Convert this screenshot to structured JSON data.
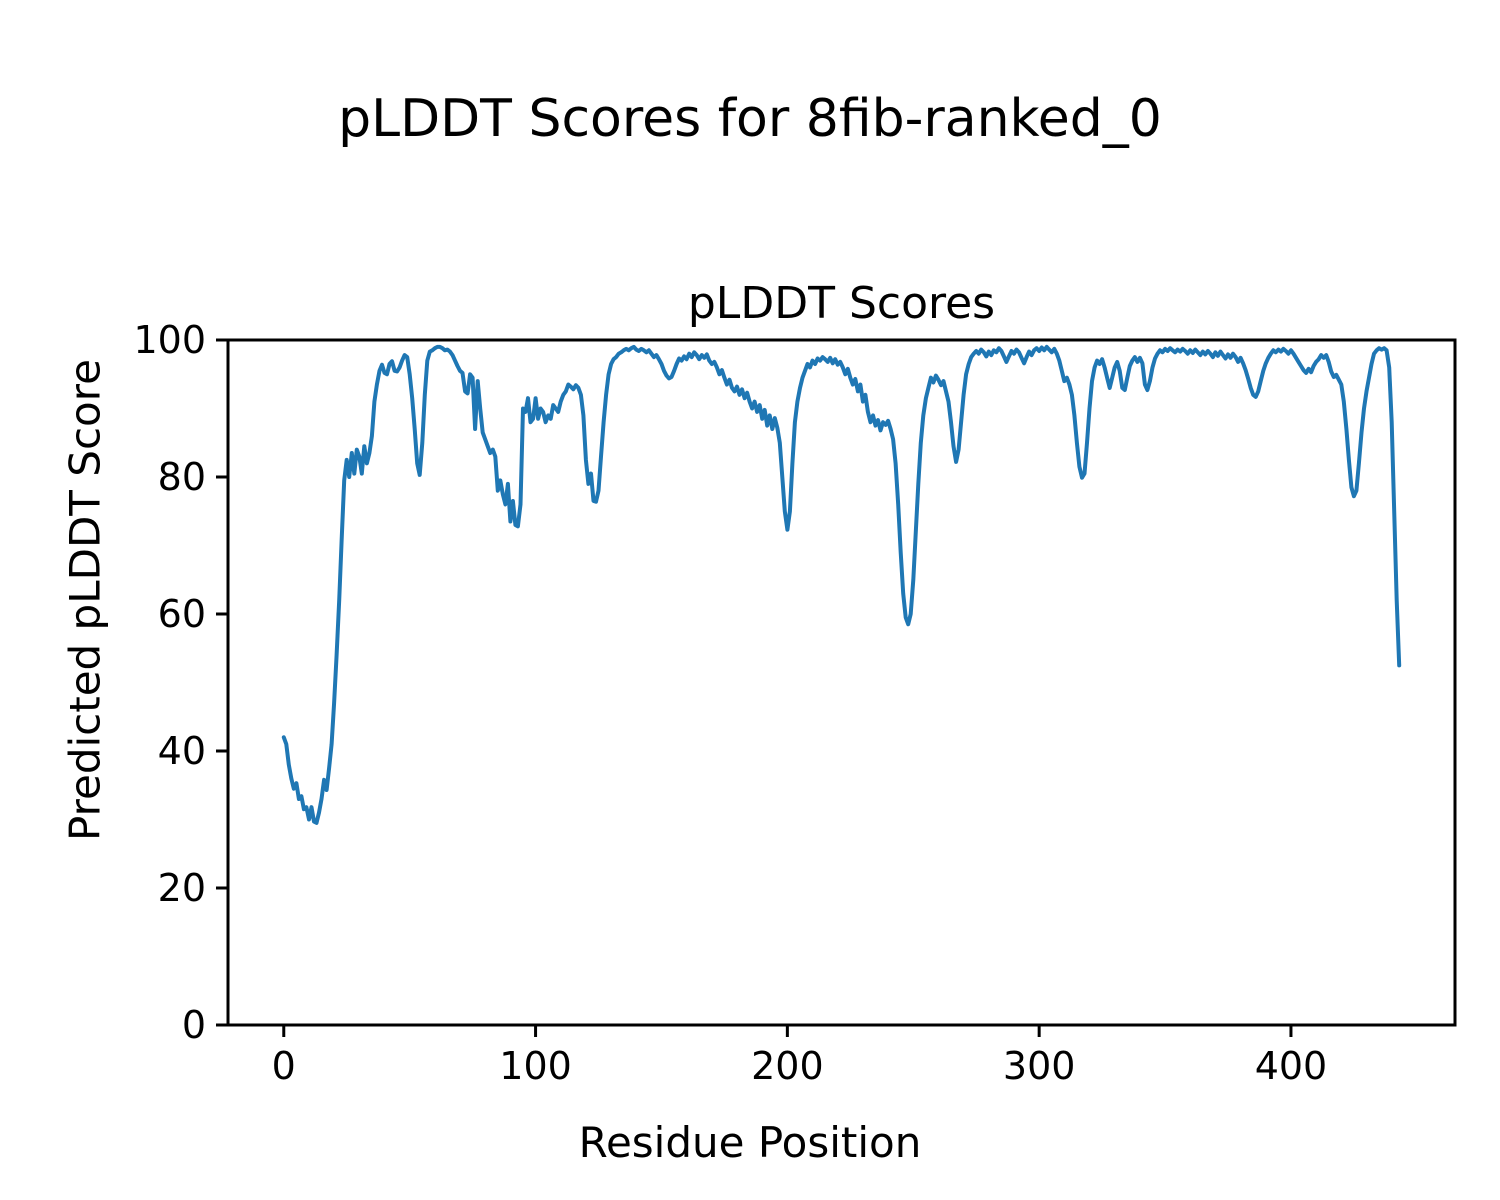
{
  "figure": {
    "title": "pLDDT Scores for 8fib-ranked_0"
  },
  "chart_data": {
    "type": "line",
    "title": "pLDDT Scores",
    "xlabel": "Residue Position",
    "ylabel": "Predicted pLDDT Score",
    "legend": "none",
    "grid": false,
    "line_color": "#1f77b4",
    "line_width": 4,
    "xlim": [
      -22.15,
      465.15
    ],
    "ylim": [
      0,
      100
    ],
    "x_ticks": [
      0,
      100,
      200,
      300,
      400
    ],
    "y_ticks": [
      0,
      20,
      40,
      60,
      80,
      100
    ],
    "x0": 0,
    "dx": 1,
    "y": [
      42,
      41,
      38,
      36,
      34.5,
      35.3,
      33,
      33.4,
      31.5,
      31.8,
      30,
      31.8,
      29.7,
      29.5,
      31,
      33,
      35.8,
      34.3,
      37.5,
      41,
      47,
      54,
      62,
      71,
      79.5,
      82.5,
      80,
      83.5,
      80.5,
      84,
      83,
      80.5,
      84.5,
      82,
      83.5,
      86,
      91,
      93.5,
      95.5,
      96.4,
      95.2,
      95,
      96.5,
      96.9,
      95.5,
      95.4,
      96,
      97,
      97.8,
      97.5,
      95,
      91.5,
      87,
      82,
      80.3,
      85,
      92,
      97,
      98.3,
      98.5,
      98.8,
      99,
      99,
      98.8,
      98.5,
      98.6,
      98.3,
      97.8,
      97,
      96.2,
      95.5,
      95.2,
      92.5,
      92.2,
      95,
      94.5,
      87,
      94,
      90,
      86.5,
      85.5,
      84.5,
      83.5,
      84,
      83,
      78,
      79.5,
      77.5,
      76,
      79,
      73.5,
      76.5,
      73,
      72.8,
      76,
      90,
      89.5,
      91.5,
      88,
      88.5,
      91.5,
      88.5,
      90,
      89.5,
      88,
      89,
      88.5,
      90.5,
      90,
      89.5,
      91,
      92,
      92.5,
      93.5,
      93.2,
      92.8,
      93.4,
      93,
      92,
      89,
      82.5,
      79,
      80.5,
      76.5,
      76.4,
      78,
      83,
      88,
      92,
      95,
      96.5,
      97.2,
      97.5,
      98,
      98.2,
      98.5,
      98.7,
      98.5,
      98.8,
      99,
      98.6,
      98.4,
      98.7,
      98.5,
      98.2,
      98.5,
      98,
      97.5,
      97.8,
      97.2,
      96.5,
      95.5,
      94.8,
      94.4,
      94.6,
      95.5,
      96.5,
      97.3,
      97,
      97.6,
      97.2,
      98,
      97.5,
      98.2,
      97.8,
      97.2,
      97.8,
      97.4,
      97.9,
      97,
      96.5,
      96.8,
      96,
      95,
      95.6,
      94.5,
      93.5,
      94.2,
      93,
      92.5,
      93.2,
      92,
      92.8,
      91.5,
      92.3,
      91,
      90,
      91,
      89.5,
      90.5,
      88.5,
      89.8,
      87.5,
      89,
      87,
      88.6,
      87.2,
      85,
      80,
      75,
      72.3,
      75,
      82,
      88,
      91,
      93,
      94.5,
      95.5,
      96.5,
      96,
      97,
      96.5,
      97.3,
      97,
      97.5,
      97.2,
      96.8,
      97.4,
      96.6,
      97.2,
      96.4,
      96.8,
      96,
      95,
      95.8,
      94.5,
      93.5,
      94.3,
      92.5,
      93.5,
      91,
      92,
      89.5,
      88,
      89,
      87.5,
      88.3,
      86.8,
      88,
      87.6,
      88.2,
      87,
      85.5,
      82,
      76,
      69,
      63,
      59.5,
      58.5,
      60,
      65,
      72,
      79,
      85,
      89,
      91.5,
      93,
      94.5,
      93.8,
      94.8,
      94.2,
      93.4,
      94,
      92.5,
      91,
      88,
      84.5,
      82.2,
      84,
      88,
      92,
      95,
      96.5,
      97.5,
      98,
      98.4,
      98,
      98.6,
      98.2,
      97.6,
      98.3,
      97.8,
      98.5,
      98.2,
      98.8,
      98.4,
      97.6,
      96.8,
      97.6,
      98.4,
      98,
      98.6,
      98.2,
      97.4,
      96.6,
      97.5,
      98.3,
      97.8,
      98.5,
      98.8,
      98.4,
      98.9,
      98.5,
      99,
      98.6,
      98.2,
      98.7,
      98,
      97,
      95.5,
      94,
      94.5,
      93.5,
      92,
      89,
      85,
      81.5,
      79.9,
      80.5,
      85,
      90,
      94,
      96,
      97,
      96.5,
      97.2,
      96,
      94.5,
      93,
      94.5,
      96,
      96.8,
      95.5,
      93,
      92.7,
      94.5,
      96.2,
      97,
      97.5,
      96.8,
      97.4,
      96.6,
      93.5,
      92.7,
      94,
      96,
      97.3,
      98,
      98.5,
      98.2,
      98.7,
      98.4,
      98.8,
      98.5,
      98.2,
      98.6,
      98.3,
      98.7,
      98.4,
      98,
      98.5,
      98.1,
      98.6,
      98.2,
      97.8,
      98.3,
      97.9,
      98.4,
      98,
      97.5,
      98.2,
      97.7,
      98.3,
      97.8,
      97.3,
      97.9,
      97.4,
      98,
      97.5,
      96.8,
      97.4,
      96.6,
      95.6,
      94.4,
      93,
      92,
      91.7,
      92.5,
      94,
      95.5,
      96.6,
      97.4,
      98,
      98.5,
      98.2,
      98.6,
      98.3,
      98.7,
      98.4,
      98,
      98.5,
      98,
      97.4,
      96.8,
      96.2,
      95.6,
      95.2,
      95.8,
      95.3,
      96.2,
      96.8,
      97.2,
      97.8,
      97.4,
      97.8,
      96.8,
      95.4,
      94.6,
      94.9,
      94.2,
      93.5,
      91,
      87,
      82.5,
      78.5,
      77.2,
      78,
      82,
      86.5,
      90,
      92.5,
      94.5,
      96.5,
      98,
      98.5,
      98.8,
      98.6,
      98.8,
      98.5,
      96,
      88,
      75,
      62,
      52.5
    ]
  }
}
